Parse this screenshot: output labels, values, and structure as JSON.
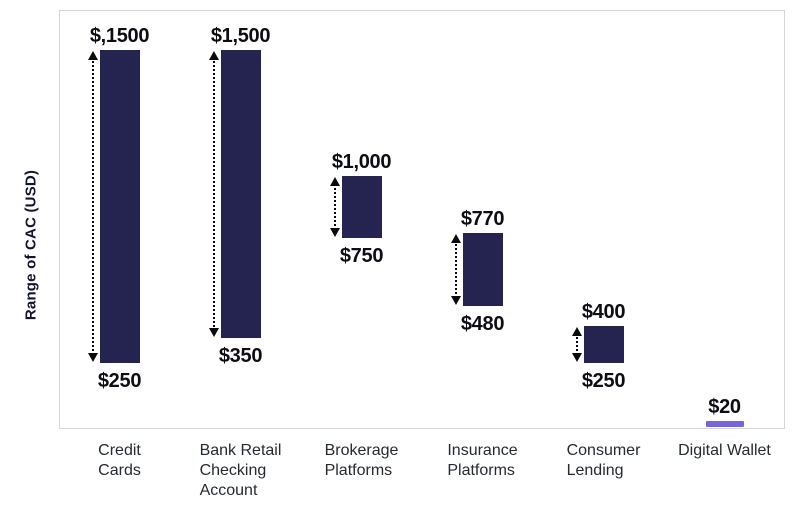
{
  "chart_data": {
    "type": "bar",
    "subtype": "floating-range-bars",
    "title": "",
    "xlabel": "",
    "ylabel": "Range of CAC (USD)",
    "ylim": [
      0,
      1660
    ],
    "grid": false,
    "legend": "none",
    "bar_color": "#252350",
    "highlight_color": "#7a65d8",
    "arrow_color": "#0a0a0a",
    "categories": [
      "Credit Cards",
      "Bank Retail Checking Account",
      "Brokerage Platforms",
      "Insurance Platforms",
      "Consumer Lending",
      "Digital Wallet"
    ],
    "items": [
      {
        "category": "Credit Cards",
        "label_lines": [
          "Credit",
          "Cards"
        ],
        "min": 250,
        "max": 1500,
        "min_label": "$250",
        "max_label": "$,1500",
        "style": "range"
      },
      {
        "category": "Bank Retail Checking Account",
        "label_lines": [
          "Bank Retail",
          "Checking",
          "Account"
        ],
        "min": 350,
        "max": 1500,
        "min_label": "$350",
        "max_label": "$1,500",
        "style": "range"
      },
      {
        "category": "Brokerage Platforms",
        "label_lines": [
          "Brokerage",
          "Platforms"
        ],
        "min": 750,
        "max": 1000,
        "min_label": "$750",
        "max_label": "$1,000",
        "style": "range"
      },
      {
        "category": "Insurance Platforms",
        "label_lines": [
          "Insurance",
          "Platforms"
        ],
        "min": 480,
        "max": 770,
        "min_label": "$480",
        "max_label": "$770",
        "style": "range"
      },
      {
        "category": "Consumer Lending",
        "label_lines": [
          "Consumer",
          "Lending"
        ],
        "min": 250,
        "max": 400,
        "min_label": "$250",
        "max_label": "$400",
        "style": "range"
      },
      {
        "category": "Digital Wallet",
        "label_lines": [
          "Digital Wallet"
        ],
        "min": 20,
        "max": 20,
        "min_label": "",
        "max_label": "$20",
        "style": "line"
      }
    ]
  }
}
